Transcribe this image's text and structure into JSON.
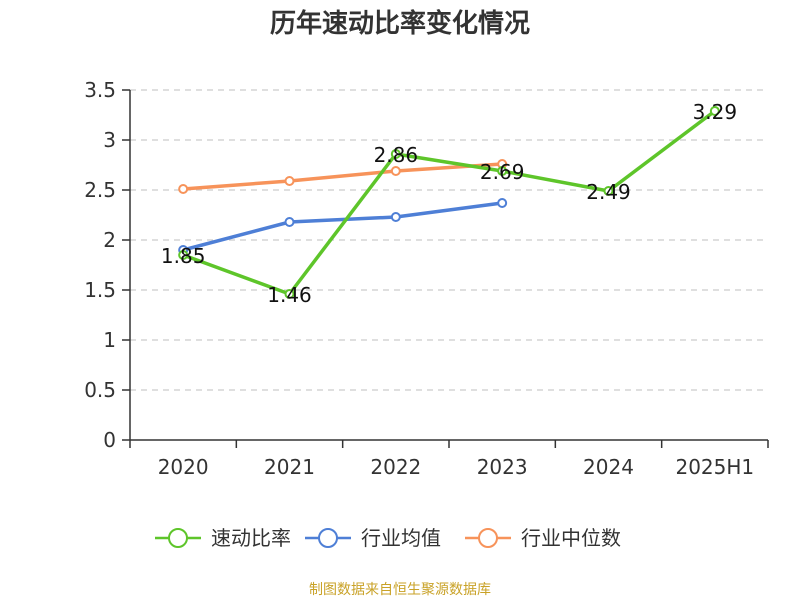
{
  "chart_data": {
    "type": "line",
    "title": "历年速动比率变化情况",
    "categories": [
      "2020",
      "2021",
      "2022",
      "2023",
      "2024",
      "2025H1"
    ],
    "ylim": [
      0,
      3.5
    ],
    "yticks": [
      "0",
      "0.5",
      "1",
      "1.5",
      "2",
      "2.5",
      "3",
      "3.5"
    ],
    "grid": true,
    "legend_position": "bottom",
    "series": [
      {
        "name": "速动比率",
        "color": "#5ec52a",
        "values": [
          1.85,
          1.46,
          2.86,
          2.69,
          2.49,
          3.29
        ],
        "labels": [
          "1.85",
          "1.46",
          "2.86",
          "2.69",
          "2.49",
          "3.29"
        ]
      },
      {
        "name": "行业均值",
        "color": "#4e7fd6",
        "values": [
          1.9,
          2.18,
          2.23,
          2.37,
          null,
          null
        ]
      },
      {
        "name": "行业中位数",
        "color": "#f7935a",
        "values": [
          2.51,
          2.59,
          2.69,
          2.76,
          null,
          null
        ]
      }
    ]
  },
  "source": "制图数据来自恒生聚源数据库"
}
